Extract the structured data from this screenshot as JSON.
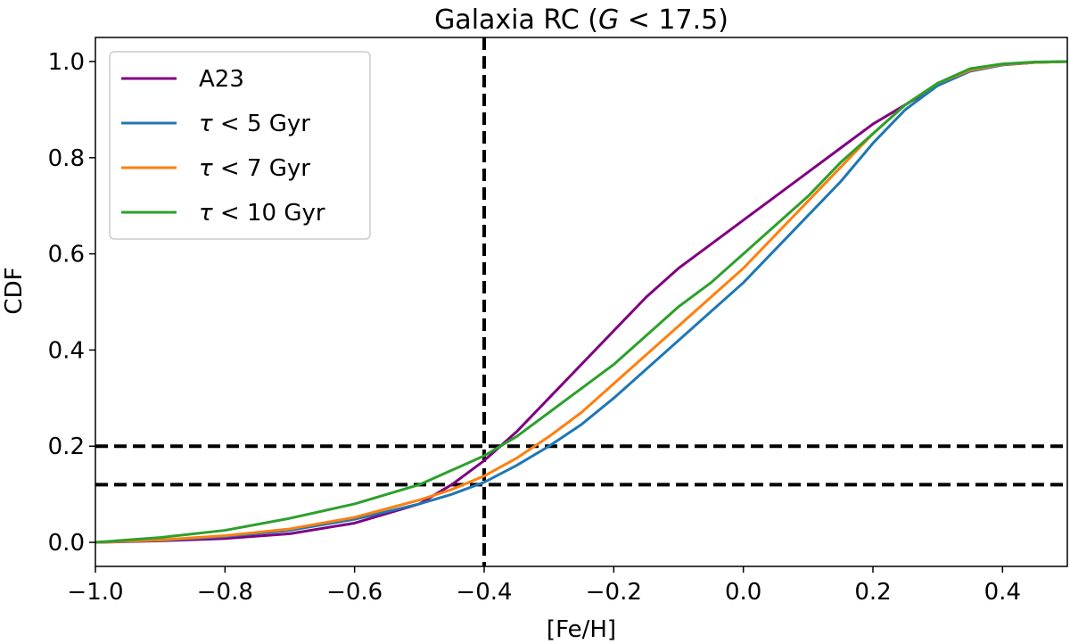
{
  "chart_data": {
    "type": "line",
    "title": {
      "prefix": "Galaxia RC (",
      "italic": "G",
      "suffix": " < 17.5)"
    },
    "xlabel": "[Fe/H]",
    "ylabel": "CDF",
    "xlim": [
      -1.0,
      0.5
    ],
    "ylim": [
      -0.05,
      1.05
    ],
    "xticks": [
      -1.0,
      -0.8,
      -0.6,
      -0.4,
      -0.2,
      0.0,
      0.2,
      0.4
    ],
    "xtick_labels": [
      "−1.0",
      "−0.8",
      "−0.6",
      "−0.4",
      "−0.2",
      "0.0",
      "0.2",
      "0.4"
    ],
    "yticks": [
      0.0,
      0.2,
      0.4,
      0.6,
      0.8,
      1.0
    ],
    "ytick_labels": [
      "0.0",
      "0.2",
      "0.4",
      "0.6",
      "0.8",
      "1.0"
    ],
    "grid": false,
    "legend_position": "top-left",
    "reference_lines": {
      "vertical_x": [
        -0.4
      ],
      "horizontal_y": [
        0.2,
        0.12
      ],
      "style": "dashed",
      "color": "#000000"
    },
    "series": [
      {
        "name": "A23",
        "legend": {
          "italic": "",
          "text": "A23"
        },
        "color": "#800080",
        "x": [
          -1.0,
          -0.9,
          -0.8,
          -0.7,
          -0.6,
          -0.5,
          -0.45,
          -0.4,
          -0.35,
          -0.3,
          -0.25,
          -0.2,
          -0.15,
          -0.1,
          -0.05,
          0.0,
          0.05,
          0.1,
          0.15,
          0.2,
          0.25,
          0.3,
          0.35,
          0.4,
          0.45,
          0.5
        ],
        "y": [
          0.0,
          0.003,
          0.008,
          0.018,
          0.04,
          0.08,
          0.12,
          0.17,
          0.23,
          0.3,
          0.37,
          0.44,
          0.51,
          0.57,
          0.62,
          0.67,
          0.72,
          0.77,
          0.82,
          0.87,
          0.91,
          0.95,
          0.98,
          0.993,
          0.998,
          1.0
        ]
      },
      {
        "name": "τ < 5 Gyr",
        "legend": {
          "italic": "τ",
          "text": " < 5 Gyr"
        },
        "color": "#1f77b4",
        "x": [
          -1.0,
          -0.9,
          -0.8,
          -0.7,
          -0.6,
          -0.5,
          -0.45,
          -0.4,
          -0.35,
          -0.3,
          -0.25,
          -0.2,
          -0.15,
          -0.1,
          -0.05,
          0.0,
          0.05,
          0.1,
          0.15,
          0.2,
          0.25,
          0.3,
          0.35,
          0.4,
          0.45,
          0.5
        ],
        "y": [
          0.0,
          0.004,
          0.012,
          0.025,
          0.048,
          0.08,
          0.1,
          0.125,
          0.16,
          0.2,
          0.245,
          0.3,
          0.36,
          0.42,
          0.48,
          0.54,
          0.61,
          0.68,
          0.75,
          0.83,
          0.9,
          0.95,
          0.98,
          0.993,
          0.998,
          1.0
        ]
      },
      {
        "name": "τ < 7 Gyr",
        "legend": {
          "italic": "τ",
          "text": " < 7 Gyr"
        },
        "color": "#ff7f0e",
        "x": [
          -1.0,
          -0.9,
          -0.8,
          -0.7,
          -0.6,
          -0.5,
          -0.45,
          -0.4,
          -0.35,
          -0.3,
          -0.25,
          -0.2,
          -0.15,
          -0.1,
          -0.05,
          0.0,
          0.05,
          0.1,
          0.15,
          0.2,
          0.25,
          0.3,
          0.35,
          0.4,
          0.45,
          0.5
        ],
        "y": [
          0.0,
          0.005,
          0.014,
          0.028,
          0.052,
          0.088,
          0.11,
          0.138,
          0.175,
          0.22,
          0.27,
          0.33,
          0.39,
          0.45,
          0.51,
          0.57,
          0.64,
          0.71,
          0.78,
          0.85,
          0.91,
          0.955,
          0.982,
          0.994,
          0.998,
          1.0
        ]
      },
      {
        "name": "τ < 10 Gyr",
        "legend": {
          "italic": "τ",
          "text": " < 10 Gyr"
        },
        "color": "#2ca02c",
        "x": [
          -1.0,
          -0.9,
          -0.8,
          -0.7,
          -0.6,
          -0.5,
          -0.45,
          -0.4,
          -0.35,
          -0.3,
          -0.25,
          -0.2,
          -0.15,
          -0.1,
          -0.05,
          0.0,
          0.05,
          0.1,
          0.15,
          0.2,
          0.25,
          0.3,
          0.35,
          0.4,
          0.45,
          0.5
        ],
        "y": [
          0.0,
          0.01,
          0.025,
          0.05,
          0.08,
          0.12,
          0.15,
          0.18,
          0.22,
          0.27,
          0.32,
          0.37,
          0.43,
          0.49,
          0.54,
          0.6,
          0.66,
          0.72,
          0.79,
          0.85,
          0.91,
          0.955,
          0.985,
          0.995,
          0.999,
          1.0
        ]
      }
    ]
  }
}
